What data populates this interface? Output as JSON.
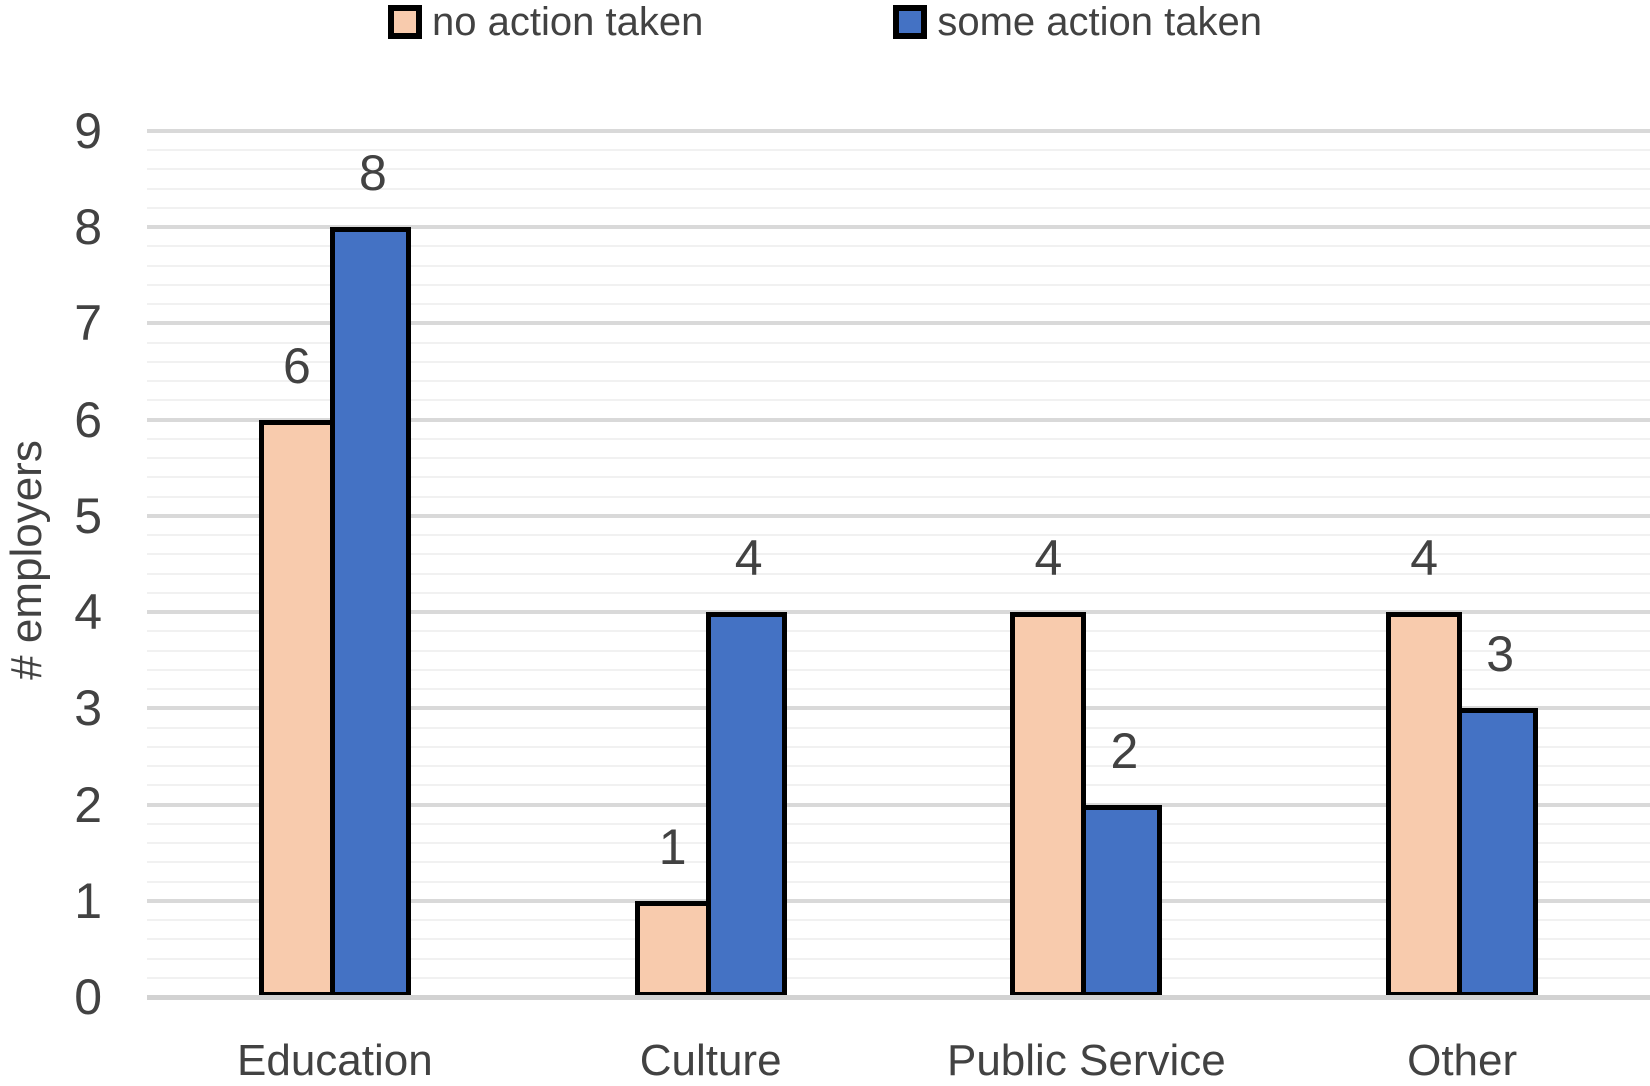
{
  "chart_data": {
    "type": "bar",
    "title": "",
    "categories": [
      "Education",
      "Culture",
      "Public Service",
      "Other"
    ],
    "series": [
      {
        "name": "no action taken",
        "color": "#F8CBAD",
        "values": [
          6,
          1,
          4,
          4
        ]
      },
      {
        "name": "some action taken",
        "color": "#4472C4",
        "values": [
          8,
          4,
          2,
          3
        ]
      }
    ],
    "data_labels": [
      {
        "category": "Education",
        "no_action_taken": 6,
        "some_action_taken": 8
      },
      {
        "category": "Culture",
        "no_action_taken": 1,
        "some_action_taken": 4
      },
      {
        "category": "Public Service",
        "no_action_taken": 4,
        "some_action_taken": 2
      },
      {
        "category": "Other",
        "no_action_taken": 4,
        "some_action_taken": 3
      }
    ],
    "xlabel": "",
    "ylabel": "# employers",
    "ylim": [
      0,
      9
    ],
    "y_ticks": [
      0,
      1,
      2,
      3,
      4,
      5,
      6,
      7,
      8,
      9
    ],
    "y_major_step": 1,
    "y_minor_step": 0.2,
    "grid": "horizontal major and minor gridlines",
    "legend_position": "top-center",
    "bar_outline": "#000000"
  },
  "colors": {
    "series_no_action": "#F8CBAD",
    "series_some_action": "#4472C4",
    "bar_border": "#000000",
    "major_gridline": "#D9D9D9",
    "minor_gridline": "#F1F1F1",
    "axis_line": "#D2D2D2",
    "text": "#424242",
    "background": "#FFFFFF"
  }
}
